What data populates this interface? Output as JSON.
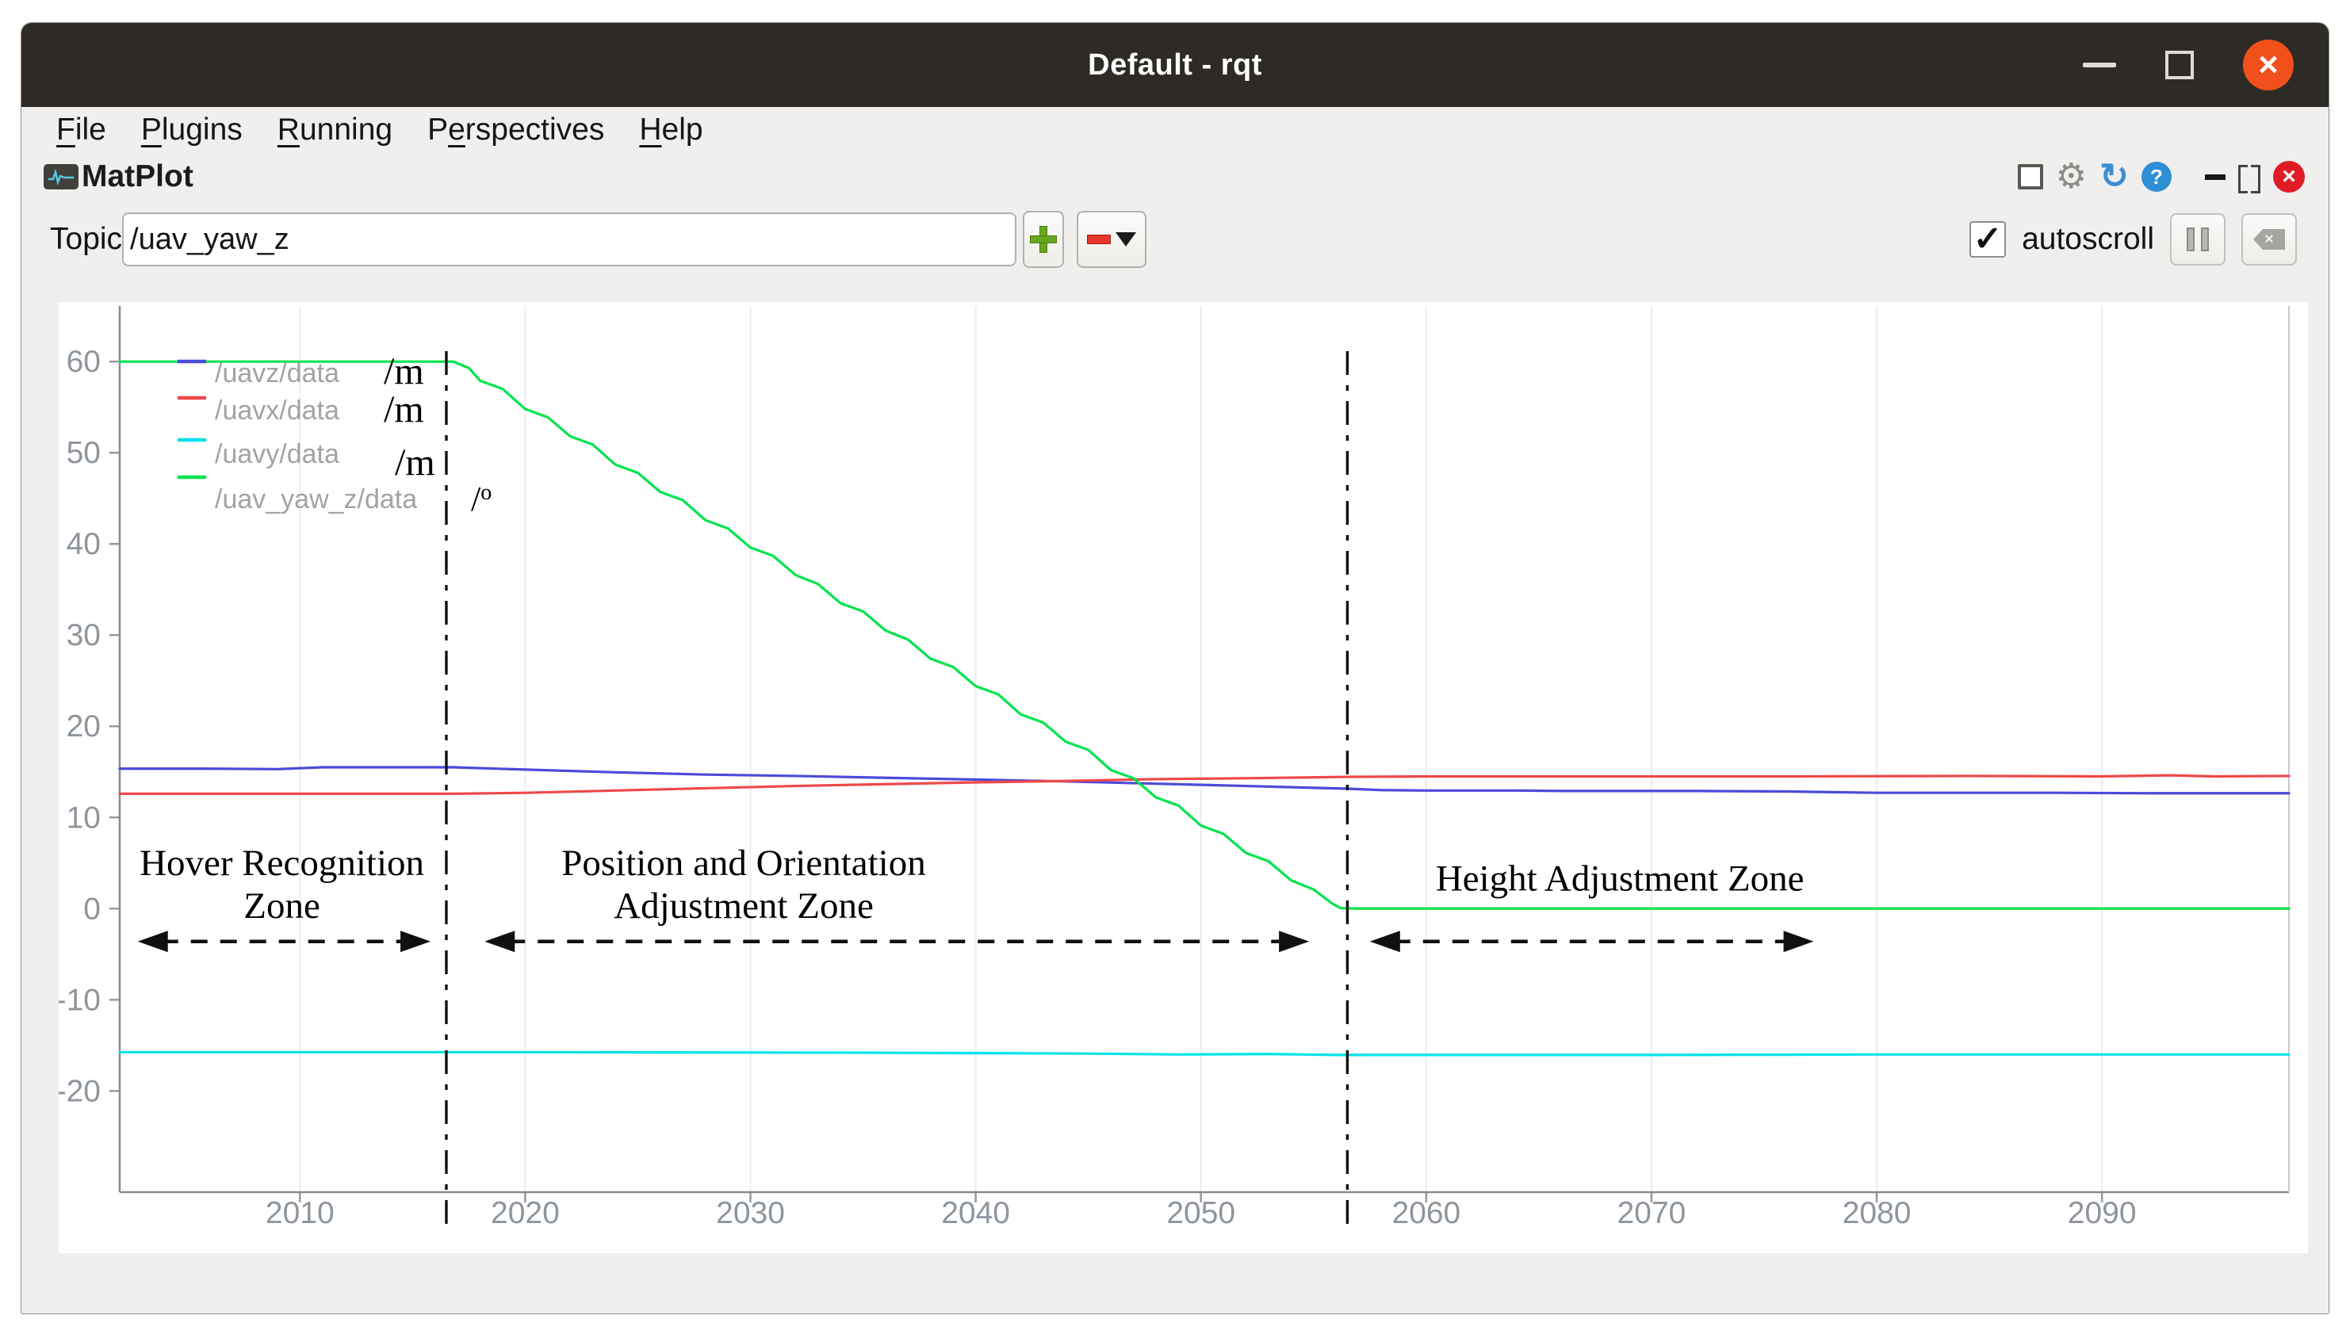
{
  "window": {
    "title": "Default - rqt"
  },
  "menu": {
    "items": [
      {
        "pre": "",
        "u": "F",
        "post": "ile"
      },
      {
        "pre": "",
        "u": "P",
        "post": "lugins"
      },
      {
        "pre": "",
        "u": "R",
        "post": "unning"
      },
      {
        "pre": "P",
        "u": "e",
        "post": "rspectives"
      },
      {
        "pre": "",
        "u": "H",
        "post": "elp"
      }
    ]
  },
  "plugin": {
    "title": "MatPlot"
  },
  "toolbar": {
    "topic_label": "Topic",
    "topic_value": "/uav_yaw_z",
    "autoscroll_label": "autoscroll",
    "autoscroll_checked": true
  },
  "icons": {
    "check": "✓",
    "gear": "⚙",
    "refresh": "↻",
    "help": "?",
    "close": "×",
    "clear_x": "×"
  },
  "chart_data": {
    "type": "line",
    "title": "",
    "xlabel": "",
    "ylabel": "",
    "xlim": [
      2002,
      2098.3
    ],
    "ylim": [
      -31.1,
      66.1
    ],
    "x_ticks": [
      2010,
      2020,
      2030,
      2040,
      2050,
      2060,
      2070,
      2080,
      2090
    ],
    "y_ticks": [
      -20,
      -10,
      0,
      10,
      20,
      30,
      40,
      50,
      60
    ],
    "grid": "vertical-only",
    "axis_color": "#8a8a8a",
    "grid_color": "#ececec",
    "tick_label_color": "#8e959c",
    "legend": {
      "position": "top-left",
      "entries": [
        {
          "label": "/uavz/data",
          "color": "#4d4ada",
          "annotation": "/m"
        },
        {
          "label": "/uavx/data",
          "color": "#f04848",
          "annotation": "/m"
        },
        {
          "label": "/uavy/data",
          "color": "#00e4ec",
          "annotation": "/m"
        },
        {
          "label": "/uav_yaw_z/data",
          "color": "#00e44e",
          "annotation": "/°"
        }
      ]
    },
    "series": [
      {
        "name": "/uavz/data",
        "color": "#4d4ada",
        "points": [
          [
            2002,
            15.35
          ],
          [
            2006,
            15.35
          ],
          [
            2009,
            15.3
          ],
          [
            2011,
            15.5
          ],
          [
            2016.8,
            15.5
          ],
          [
            2020,
            15.25
          ],
          [
            2024,
            14.95
          ],
          [
            2028,
            14.7
          ],
          [
            2032,
            14.55
          ],
          [
            2036,
            14.35
          ],
          [
            2040,
            14.15
          ],
          [
            2044,
            13.95
          ],
          [
            2048,
            13.7
          ],
          [
            2052,
            13.45
          ],
          [
            2055,
            13.25
          ],
          [
            2056.5,
            13.15
          ],
          [
            2058,
            13.0
          ],
          [
            2060,
            12.95
          ],
          [
            2064,
            12.95
          ],
          [
            2066,
            12.9
          ],
          [
            2072,
            12.9
          ],
          [
            2076,
            12.85
          ],
          [
            2080,
            12.7
          ],
          [
            2088,
            12.7
          ],
          [
            2092,
            12.65
          ],
          [
            2098.3,
            12.65
          ]
        ]
      },
      {
        "name": "/uavx/data",
        "color": "#f04848",
        "points": [
          [
            2002,
            12.6
          ],
          [
            2010,
            12.6
          ],
          [
            2016.8,
            12.6
          ],
          [
            2020,
            12.7
          ],
          [
            2024,
            12.95
          ],
          [
            2028,
            13.2
          ],
          [
            2032,
            13.45
          ],
          [
            2036,
            13.65
          ],
          [
            2040,
            13.85
          ],
          [
            2044,
            14.0
          ],
          [
            2048,
            14.2
          ],
          [
            2052,
            14.3
          ],
          [
            2056.5,
            14.45
          ],
          [
            2060,
            14.5
          ],
          [
            2068,
            14.5
          ],
          [
            2076,
            14.5
          ],
          [
            2084,
            14.55
          ],
          [
            2090,
            14.5
          ],
          [
            2093,
            14.62
          ],
          [
            2095,
            14.5
          ],
          [
            2098.3,
            14.55
          ]
        ]
      },
      {
        "name": "/uavy/data",
        "color": "#00e4ec",
        "points": [
          [
            2002,
            -15.75
          ],
          [
            2020,
            -15.75
          ],
          [
            2035,
            -15.8
          ],
          [
            2045,
            -15.9
          ],
          [
            2049,
            -16.0
          ],
          [
            2053,
            -15.95
          ],
          [
            2056,
            -16.05
          ],
          [
            2070,
            -16.05
          ],
          [
            2080,
            -16.0
          ],
          [
            2098.3,
            -16.0
          ]
        ]
      },
      {
        "name": "/uav_yaw_z/data",
        "color": "#00e44e",
        "points": [
          [
            2002,
            60
          ],
          [
            2010,
            60
          ],
          [
            2016.8,
            60
          ],
          [
            2017.5,
            59.3
          ],
          [
            2018,
            57.9
          ],
          [
            2019,
            57.0
          ],
          [
            2020,
            54.8
          ],
          [
            2021,
            53.9
          ],
          [
            2022,
            51.8
          ],
          [
            2023,
            50.9
          ],
          [
            2024,
            48.7
          ],
          [
            2025,
            47.8
          ],
          [
            2026,
            45.7
          ],
          [
            2027,
            44.8
          ],
          [
            2028,
            42.6
          ],
          [
            2029,
            41.7
          ],
          [
            2030,
            39.6
          ],
          [
            2031,
            38.7
          ],
          [
            2032,
            36.6
          ],
          [
            2033,
            35.6
          ],
          [
            2034,
            33.5
          ],
          [
            2035,
            32.6
          ],
          [
            2036,
            30.5
          ],
          [
            2037,
            29.5
          ],
          [
            2038,
            27.4
          ],
          [
            2039,
            26.5
          ],
          [
            2040,
            24.4
          ],
          [
            2041,
            23.5
          ],
          [
            2042,
            21.3
          ],
          [
            2043,
            20.4
          ],
          [
            2044,
            18.3
          ],
          [
            2045,
            17.4
          ],
          [
            2046,
            15.2
          ],
          [
            2047,
            14.3
          ],
          [
            2048,
            12.2
          ],
          [
            2049,
            11.3
          ],
          [
            2050,
            9.1
          ],
          [
            2051,
            8.2
          ],
          [
            2052,
            6.1
          ],
          [
            2053,
            5.2
          ],
          [
            2054,
            3.1
          ],
          [
            2055,
            2.1
          ],
          [
            2055.8,
            0.6
          ],
          [
            2056.2,
            0.05
          ],
          [
            2057,
            0
          ],
          [
            2098.3,
            0
          ]
        ]
      }
    ],
    "vlines": {
      "values": [
        2016.5,
        2056.5
      ],
      "style": "dash-dot",
      "color": "#101010"
    },
    "zones": [
      {
        "lines": [
          "Hover Recognition",
          "Zone"
        ],
        "center_x": 2009.2,
        "text_y": [
          4.9,
          0.2
        ],
        "arrow": {
          "x1": 2002.8,
          "x2": 2015.8,
          "y": -3.6
        }
      },
      {
        "lines": [
          "Position and Orientation",
          "Adjustment Zone"
        ],
        "center_x": 2029.7,
        "text_y": [
          4.9,
          0.2
        ],
        "arrow": {
          "x1": 2018.2,
          "x2": 2054.8,
          "y": -3.6
        }
      },
      {
        "lines": [
          "Height Adjustment Zone"
        ],
        "center_x": 2068.6,
        "text_y": [
          3.2
        ],
        "arrow": {
          "x1": 2057.5,
          "x2": 2077.2,
          "y": -3.6
        }
      }
    ]
  }
}
